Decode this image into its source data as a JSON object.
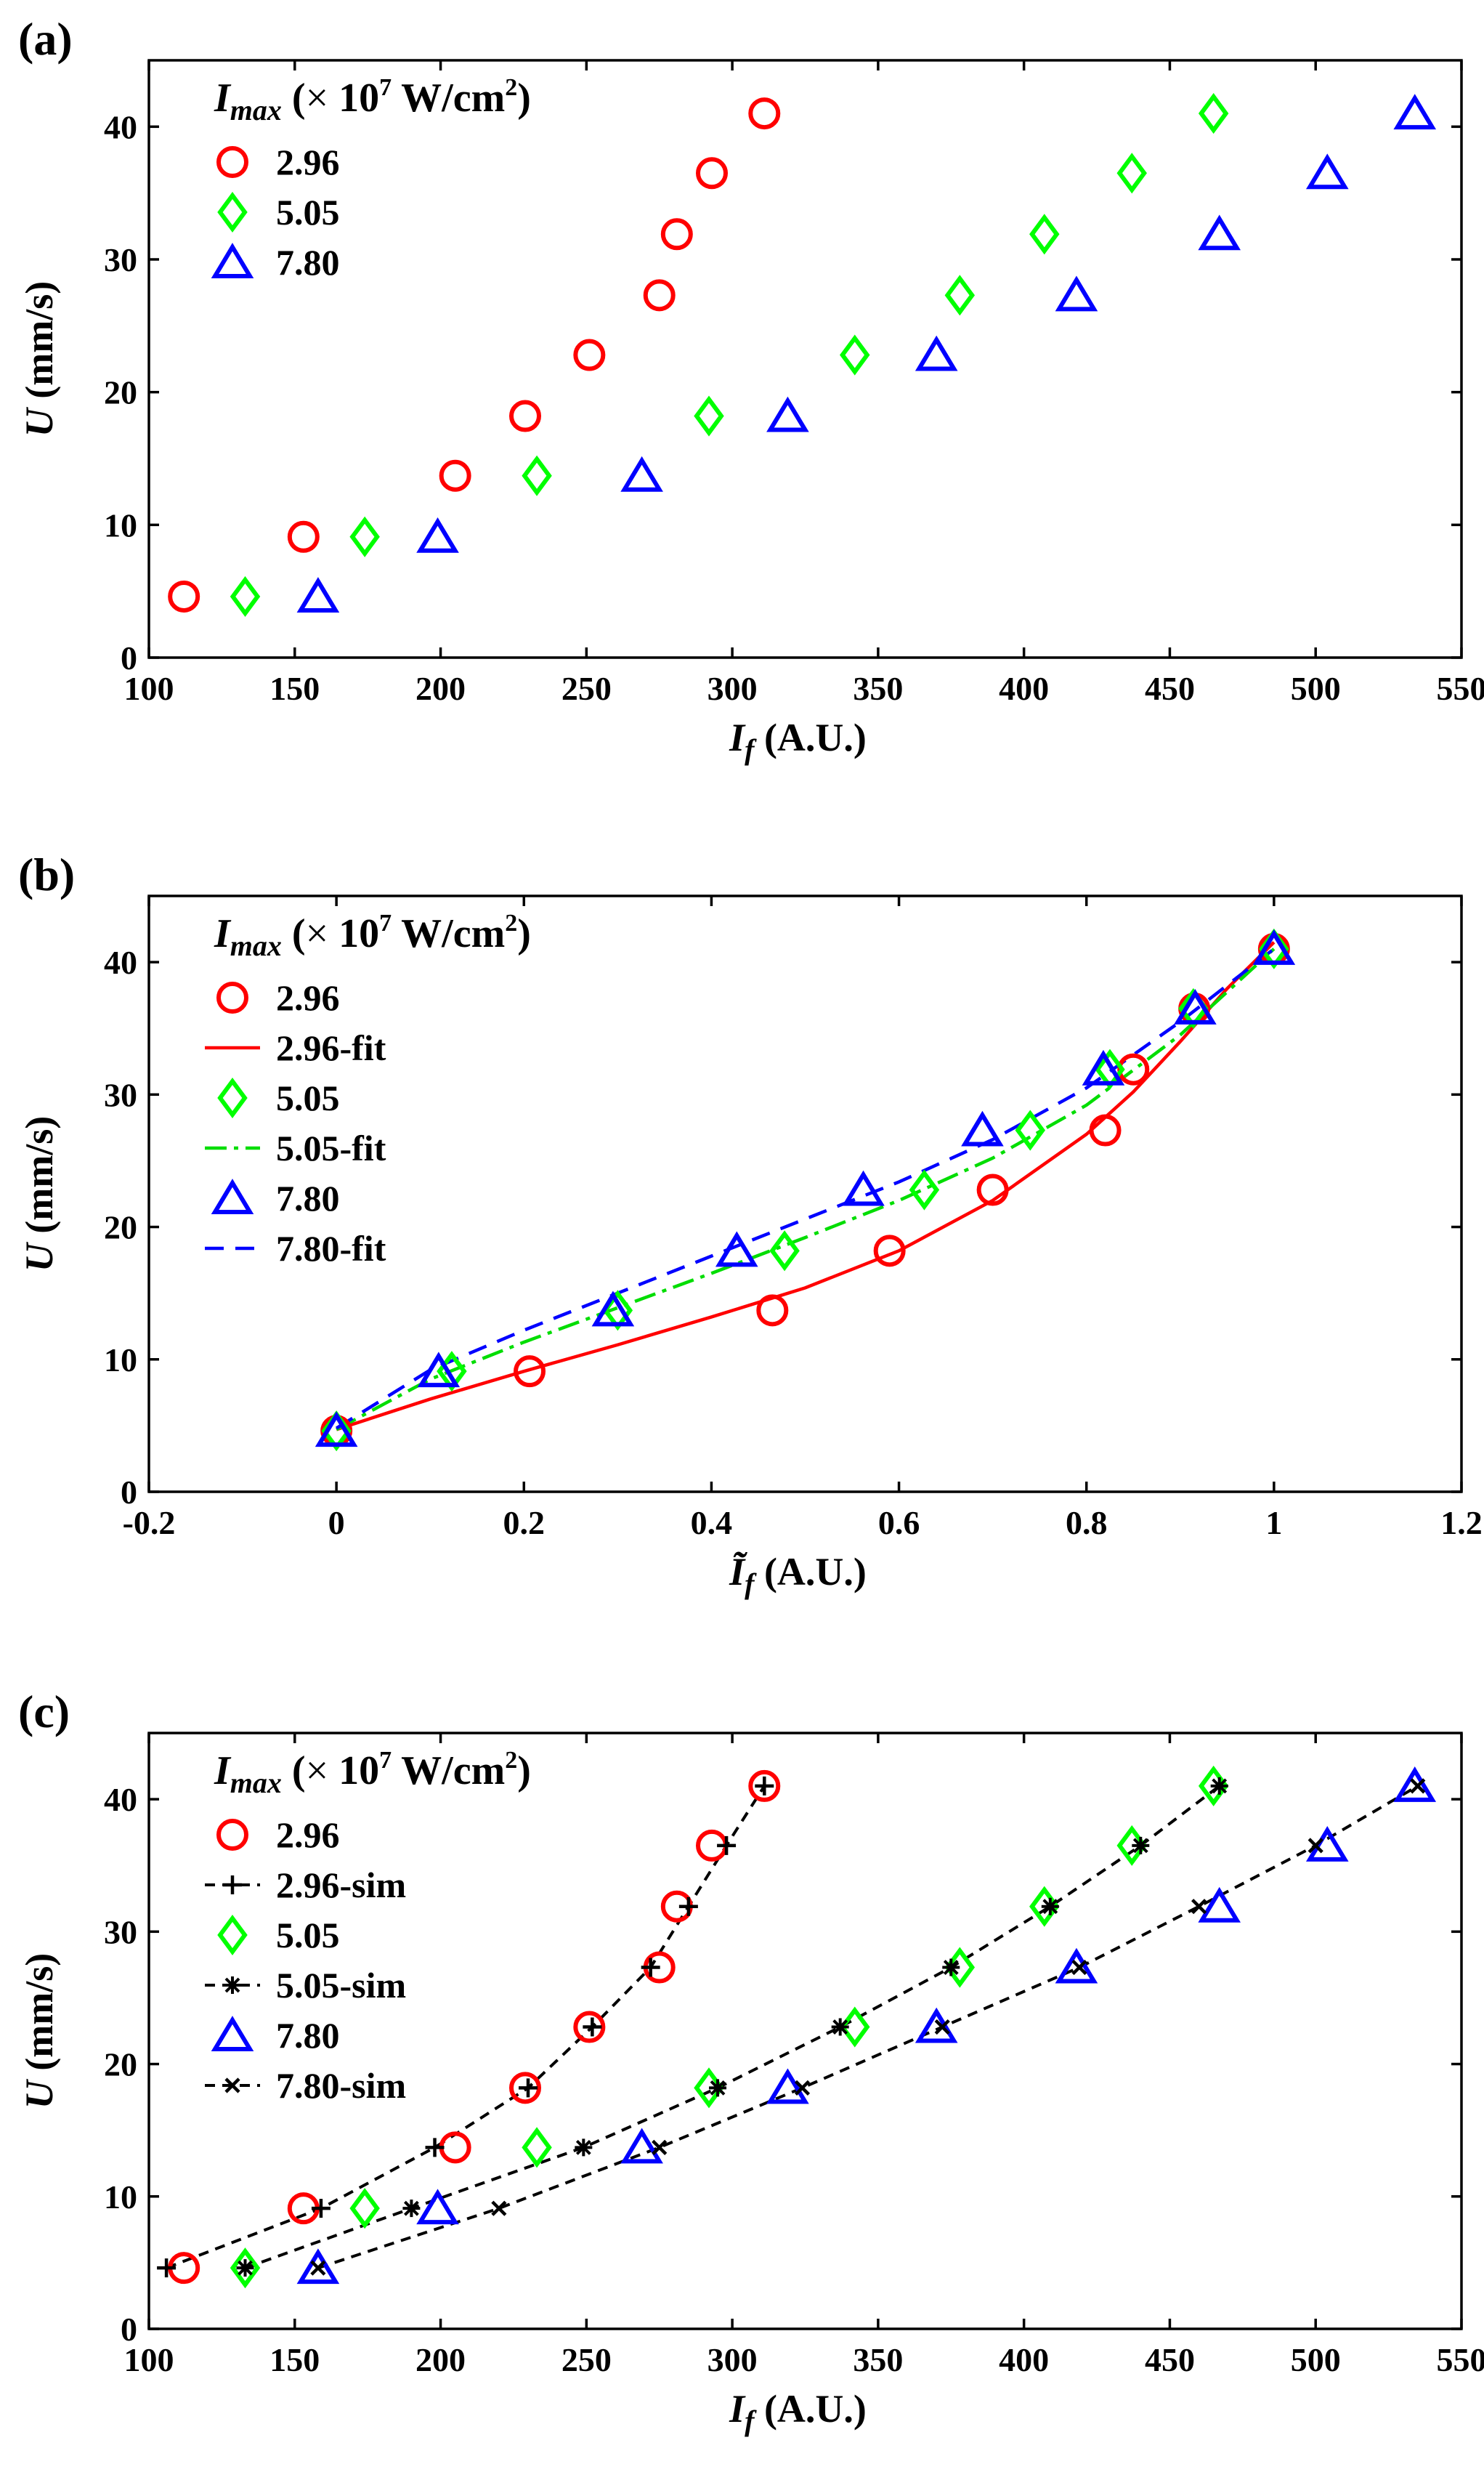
{
  "figure": {
    "legend_title": {
      "symbol": "I",
      "subscript": "max",
      "paren_open": " (",
      "times": "×",
      "ten": " 10",
      "exponent": "7",
      "unit": " W/cm",
      "unit_exp": "2",
      "paren_close": ")"
    }
  },
  "chart_data": [
    {
      "type": "scatter",
      "panel_label": "(a)",
      "xlabel_symbol": "I",
      "xlabel_sub": "f",
      "xlabel_unit": " (A.U.)",
      "ylabel_symbol": "U",
      "ylabel_unit": " (mm/s)",
      "xlim": [
        100,
        550
      ],
      "ylim": [
        0,
        45
      ],
      "xticks": [
        "100",
        "150",
        "200",
        "250",
        "300",
        "350",
        "400",
        "450",
        "500",
        "550"
      ],
      "yticks": [
        "0",
        "10",
        "20",
        "30",
        "40"
      ],
      "series": [
        {
          "name": "2.96",
          "marker": "circle",
          "color": "#ff0000",
          "x": [
            112,
            153,
            205,
            229,
            251,
            275,
            281,
            293,
            311
          ],
          "y": [
            4.6,
            9.1,
            13.7,
            18.2,
            22.8,
            27.3,
            31.9,
            36.5,
            41.0
          ]
        },
        {
          "name": "5.05",
          "marker": "diamond",
          "color": "#00ff00",
          "x": [
            133,
            174,
            233,
            292,
            342,
            378,
            407,
            437,
            465
          ],
          "y": [
            4.6,
            9.1,
            13.7,
            18.2,
            22.8,
            27.3,
            31.9,
            36.5,
            41.0
          ]
        },
        {
          "name": "7.80",
          "marker": "triangle",
          "color": "#0000ff",
          "x": [
            158,
            199,
            269,
            319,
            370,
            418,
            467,
            504,
            534
          ],
          "y": [
            4.6,
            9.1,
            13.7,
            18.2,
            22.8,
            27.3,
            31.9,
            36.5,
            41.0
          ]
        }
      ]
    },
    {
      "type": "scatter",
      "panel_label": "(b)",
      "xlabel_symbol": "Ĩ",
      "xlabel_sub": "f",
      "xlabel_unit": " (A.U.)",
      "ylabel_symbol": "U",
      "ylabel_unit": " (mm/s)",
      "xlim": [
        -0.2,
        1.2
      ],
      "ylim": [
        0,
        45
      ],
      "xticks": [
        "-0.2",
        "0",
        "0.2",
        "0.4",
        "0.6",
        "0.8",
        "1",
        "1.2"
      ],
      "yticks": [
        "0",
        "10",
        "20",
        "30",
        "40"
      ],
      "series": [
        {
          "name": "2.96",
          "marker": "circle",
          "color": "#ff0000",
          "x": [
            0,
            0.206,
            0.465,
            0.59,
            0.7,
            0.82,
            0.85,
            0.915,
            1.0
          ],
          "y": [
            4.6,
            9.1,
            13.7,
            18.2,
            22.8,
            27.3,
            31.9,
            36.5,
            41.0
          ]
        },
        {
          "name": "2.96-fit",
          "marker": "line",
          "dash": "solid",
          "color": "#ff0000",
          "x": [
            0,
            0.1,
            0.2,
            0.3,
            0.4,
            0.5,
            0.6,
            0.7,
            0.8,
            0.85,
            0.9,
            0.95,
            1.0
          ],
          "y": [
            4.7,
            7.0,
            9.1,
            11.1,
            13.2,
            15.4,
            18.2,
            22.0,
            27.0,
            30.2,
            34.0,
            38.0,
            41.5
          ]
        },
        {
          "name": "5.05",
          "marker": "diamond",
          "color": "#00ff00",
          "x": [
            0,
            0.123,
            0.3,
            0.478,
            0.627,
            0.74,
            0.825,
            0.914,
            1.0
          ],
          "y": [
            4.6,
            9.1,
            13.7,
            18.2,
            22.8,
            27.3,
            31.9,
            36.5,
            41.0
          ]
        },
        {
          "name": "5.05-fit",
          "marker": "line",
          "dash": "dashdot",
          "color": "#00dd00",
          "x": [
            0,
            0.1,
            0.2,
            0.3,
            0.4,
            0.5,
            0.6,
            0.7,
            0.8,
            0.9,
            1.0
          ],
          "y": [
            4.7,
            8.5,
            11.3,
            13.9,
            16.5,
            19.2,
            22.0,
            25.2,
            29.2,
            34.5,
            41.0
          ]
        },
        {
          "name": "7.80",
          "marker": "triangle",
          "color": "#0000ff",
          "x": [
            0,
            0.109,
            0.295,
            0.427,
            0.562,
            0.689,
            0.818,
            0.916,
            1.0
          ],
          "y": [
            4.6,
            9.1,
            13.7,
            18.2,
            22.8,
            27.3,
            31.9,
            36.5,
            41.0
          ]
        },
        {
          "name": "7.80-fit",
          "marker": "line",
          "dash": "dashed",
          "color": "#0000ff",
          "x": [
            0,
            0.1,
            0.2,
            0.3,
            0.4,
            0.5,
            0.6,
            0.7,
            0.8,
            0.9,
            1.0
          ],
          "y": [
            4.8,
            9.2,
            12.2,
            15.0,
            17.8,
            20.6,
            23.4,
            26.6,
            30.5,
            35.5,
            41.0
          ]
        }
      ]
    },
    {
      "type": "scatter",
      "panel_label": "(c)",
      "xlabel_symbol": "I",
      "xlabel_sub": "f",
      "xlabel_unit": " (A.U.)",
      "ylabel_symbol": "U",
      "ylabel_unit": " (mm/s)",
      "xlim": [
        100,
        550
      ],
      "ylim": [
        0,
        45
      ],
      "xticks": [
        "100",
        "150",
        "200",
        "250",
        "300",
        "350",
        "400",
        "450",
        "500",
        "550"
      ],
      "yticks": [
        "0",
        "10",
        "20",
        "30",
        "40"
      ],
      "series": [
        {
          "name": "2.96",
          "marker": "circle",
          "color": "#ff0000",
          "x": [
            112,
            153,
            205,
            229,
            251,
            275,
            281,
            293,
            311
          ],
          "y": [
            4.6,
            9.1,
            13.7,
            18.2,
            22.8,
            27.3,
            31.9,
            36.5,
            41.0
          ]
        },
        {
          "name": "2.96-sim",
          "marker": "plus",
          "line": "dashed",
          "color": "#000000",
          "x": [
            106,
            159,
            198,
            230,
            252,
            272,
            285,
            298,
            311
          ],
          "y": [
            4.6,
            9.1,
            13.7,
            18.2,
            22.8,
            27.3,
            31.9,
            36.5,
            41.0
          ]
        },
        {
          "name": "5.05",
          "marker": "diamond",
          "color": "#00ff00",
          "x": [
            133,
            174,
            233,
            292,
            342,
            378,
            407,
            437,
            465
          ],
          "y": [
            4.6,
            9.1,
            13.7,
            18.2,
            22.8,
            27.3,
            31.9,
            36.5,
            41.0
          ]
        },
        {
          "name": "5.05-sim",
          "marker": "star",
          "line": "dashed",
          "color": "#000000",
          "x": [
            133,
            190,
            249,
            295,
            337,
            375,
            409,
            440,
            467
          ],
          "y": [
            4.6,
            9.1,
            13.7,
            18.2,
            22.8,
            27.3,
            31.9,
            36.5,
            41.0
          ]
        },
        {
          "name": "7.80",
          "marker": "triangle",
          "color": "#0000ff",
          "x": [
            158,
            199,
            269,
            319,
            370,
            418,
            467,
            504,
            534
          ],
          "y": [
            4.6,
            9.1,
            13.7,
            18.2,
            22.8,
            27.3,
            31.9,
            36.5,
            41.0
          ]
        },
        {
          "name": "7.80-sim",
          "marker": "cross",
          "line": "dashed",
          "color": "#000000",
          "x": [
            158,
            220,
            275,
            324,
            372,
            419,
            460,
            500,
            535
          ],
          "y": [
            4.6,
            9.1,
            13.7,
            18.2,
            22.8,
            27.3,
            31.9,
            36.5,
            41.0
          ]
        }
      ]
    }
  ]
}
